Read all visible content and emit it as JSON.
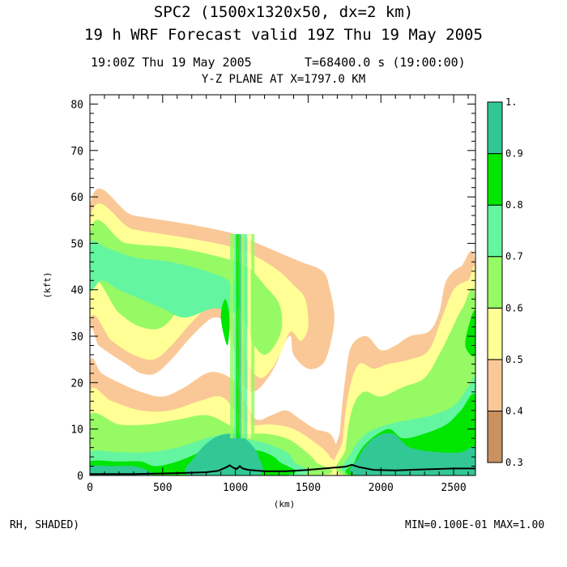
{
  "header": {
    "title_line1": "SPC2 (1500x1320x50, dx=2 km)",
    "title_line2": "19 h WRF Forecast valid 19Z Thu 19 May 2005",
    "time_text": "19:00Z Thu 19 May 2005",
    "seconds_text": "T=68400.0 s (19:00:00)",
    "plane_text": "Y-Z PLANE AT X=1797.0 KM"
  },
  "footer": {
    "field_text": "RH, SHADED)",
    "minmax_text": "MIN=0.100E-01 MAX=1.00"
  },
  "colors": {
    "levels": [
      "#c8915f",
      "#fac896",
      "#ffff96",
      "#96fa64",
      "#64f5a0",
      "#00e600",
      "#32c896"
    ]
  },
  "chart_data": {
    "type": "heatmap",
    "xlabel": "(km)",
    "ylabel": "(kft)",
    "xlim": [
      0,
      2650
    ],
    "ylim": [
      0,
      82
    ],
    "x_ticks": [
      0,
      500,
      1000,
      1500,
      2000,
      2500
    ],
    "y_ticks": [
      0,
      10,
      20,
      30,
      40,
      50,
      60,
      70,
      80
    ],
    "colorbar": {
      "labels": [
        "0.3",
        "0.4",
        "0.5",
        "0.6",
        "0.7",
        "0.8",
        "0.9",
        "1."
      ],
      "levels": [
        0.3,
        0.4,
        0.5,
        0.6,
        0.7,
        0.8,
        0.9,
        1.0
      ]
    },
    "fields": [
      {
        "level": 0.4,
        "points": [
          [
            0,
            0
          ],
          [
            0,
            58
          ],
          [
            300,
            56
          ],
          [
            700,
            54
          ],
          [
            1000,
            52
          ],
          [
            1150,
            50
          ],
          [
            1300,
            48
          ],
          [
            1450,
            46
          ],
          [
            1600,
            44
          ],
          [
            1650,
            40
          ],
          [
            1680,
            34
          ],
          [
            1650,
            28
          ],
          [
            1600,
            24
          ],
          [
            1500,
            23
          ],
          [
            1400,
            26
          ],
          [
            1380,
            30
          ],
          [
            1330,
            28
          ],
          [
            1280,
            24
          ],
          [
            1200,
            20
          ],
          [
            1120,
            18
          ],
          [
            1050,
            20
          ],
          [
            1000,
            26
          ],
          [
            950,
            32
          ],
          [
            850,
            34
          ],
          [
            700,
            30
          ],
          [
            560,
            25
          ],
          [
            450,
            22
          ],
          [
            350,
            22
          ],
          [
            250,
            24
          ],
          [
            150,
            26
          ],
          [
            60,
            28
          ],
          [
            0,
            30
          ]
        ]
      },
      {
        "level": 0.4,
        "points": [
          [
            0,
            24
          ],
          [
            80,
            22
          ],
          [
            200,
            20
          ],
          [
            350,
            18
          ],
          [
            500,
            17
          ],
          [
            650,
            19
          ],
          [
            800,
            22
          ],
          [
            900,
            22
          ],
          [
            1000,
            20
          ],
          [
            1080,
            15
          ],
          [
            1150,
            12
          ],
          [
            1250,
            13
          ],
          [
            1350,
            14
          ],
          [
            1450,
            12
          ],
          [
            1550,
            10
          ],
          [
            1650,
            9
          ],
          [
            1700,
            6
          ],
          [
            1750,
            3
          ],
          [
            1750,
            0
          ],
          [
            0,
            0
          ]
        ]
      },
      {
        "level": 0.4,
        "points": [
          [
            1720,
            0
          ],
          [
            1720,
            10
          ],
          [
            1760,
            22
          ],
          [
            1800,
            28
          ],
          [
            1900,
            30
          ],
          [
            2000,
            27
          ],
          [
            2100,
            28
          ],
          [
            2200,
            30
          ],
          [
            2330,
            31
          ],
          [
            2400,
            35
          ],
          [
            2450,
            42
          ],
          [
            2550,
            45
          ],
          [
            2650,
            45
          ],
          [
            2650,
            0
          ]
        ]
      },
      {
        "level": 0.5,
        "points": [
          [
            0,
            0
          ],
          [
            0,
            55
          ],
          [
            300,
            53
          ],
          [
            700,
            51
          ],
          [
            1000,
            49
          ],
          [
            1150,
            47
          ],
          [
            1300,
            44
          ],
          [
            1400,
            41
          ],
          [
            1480,
            38
          ],
          [
            1500,
            32
          ],
          [
            1450,
            29
          ],
          [
            1380,
            31
          ],
          [
            1320,
            27
          ],
          [
            1250,
            23
          ],
          [
            1170,
            21
          ],
          [
            1090,
            24
          ],
          [
            1040,
            30
          ],
          [
            960,
            35
          ],
          [
            850,
            37
          ],
          [
            700,
            33
          ],
          [
            560,
            28
          ],
          [
            440,
            25
          ],
          [
            300,
            26
          ],
          [
            150,
            29
          ],
          [
            0,
            33
          ]
        ]
      },
      {
        "level": 0.5,
        "points": [
          [
            0,
            0
          ],
          [
            0,
            18
          ],
          [
            150,
            16
          ],
          [
            350,
            14
          ],
          [
            550,
            14
          ],
          [
            750,
            16
          ],
          [
            900,
            17
          ],
          [
            1000,
            14
          ],
          [
            1100,
            11
          ],
          [
            1250,
            11
          ],
          [
            1400,
            10
          ],
          [
            1550,
            7
          ],
          [
            1650,
            4
          ],
          [
            1650,
            0
          ]
        ]
      },
      {
        "level": 0.5,
        "points": [
          [
            1740,
            0
          ],
          [
            1740,
            8
          ],
          [
            1780,
            18
          ],
          [
            1850,
            24
          ],
          [
            1950,
            23
          ],
          [
            2050,
            24
          ],
          [
            2200,
            25
          ],
          [
            2330,
            27
          ],
          [
            2420,
            34
          ],
          [
            2500,
            40
          ],
          [
            2600,
            42
          ],
          [
            2650,
            42
          ],
          [
            2650,
            0
          ]
        ]
      },
      {
        "level": 0.6,
        "points": [
          [
            0,
            4
          ],
          [
            0,
            52
          ],
          [
            250,
            50
          ],
          [
            600,
            49
          ],
          [
            900,
            47
          ],
          [
            1080,
            45
          ],
          [
            1200,
            41
          ],
          [
            1300,
            37
          ],
          [
            1320,
            32
          ],
          [
            1270,
            28
          ],
          [
            1200,
            26
          ],
          [
            1130,
            28
          ],
          [
            1080,
            32
          ],
          [
            980,
            38
          ],
          [
            850,
            40
          ],
          [
            650,
            37
          ],
          [
            500,
            32
          ],
          [
            350,
            32
          ],
          [
            200,
            35
          ],
          [
            0,
            41
          ]
        ]
      },
      {
        "level": 0.6,
        "points": [
          [
            0,
            0
          ],
          [
            0,
            13
          ],
          [
            200,
            11
          ],
          [
            400,
            11
          ],
          [
            600,
            12
          ],
          [
            800,
            13
          ],
          [
            950,
            11
          ],
          [
            1050,
            9
          ],
          [
            1200,
            9
          ],
          [
            1350,
            8
          ],
          [
            1450,
            6
          ],
          [
            1550,
            3
          ],
          [
            1550,
            0
          ]
        ]
      },
      {
        "level": 0.6,
        "points": [
          [
            1760,
            0
          ],
          [
            1760,
            6
          ],
          [
            1800,
            14
          ],
          [
            1880,
            18
          ],
          [
            2000,
            17
          ],
          [
            2150,
            19
          ],
          [
            2300,
            21
          ],
          [
            2400,
            26
          ],
          [
            2480,
            31
          ],
          [
            2560,
            36
          ],
          [
            2650,
            38
          ],
          [
            2650,
            0
          ]
        ]
      },
      {
        "level": 0.7,
        "points": [
          [
            0,
            40
          ],
          [
            0,
            50
          ],
          [
            120,
            49
          ],
          [
            300,
            47
          ],
          [
            550,
            46
          ],
          [
            800,
            44
          ],
          [
            950,
            42
          ],
          [
            1050,
            38
          ],
          [
            980,
            35
          ],
          [
            850,
            36
          ],
          [
            650,
            34
          ],
          [
            500,
            36
          ],
          [
            350,
            38
          ],
          [
            200,
            40
          ],
          [
            80,
            42
          ]
        ]
      },
      {
        "level": 0.7,
        "points": [
          [
            0,
            0
          ],
          [
            0,
            5
          ],
          [
            200,
            5
          ],
          [
            400,
            5
          ],
          [
            600,
            6
          ],
          [
            800,
            8
          ],
          [
            950,
            9
          ],
          [
            1050,
            8
          ],
          [
            1200,
            7
          ],
          [
            1350,
            5
          ],
          [
            1400,
            3
          ],
          [
            1400,
            0
          ]
        ]
      },
      {
        "level": 0.7,
        "points": [
          [
            1800,
            0
          ],
          [
            1800,
            5
          ],
          [
            1900,
            9
          ],
          [
            2050,
            11
          ],
          [
            2200,
            12
          ],
          [
            2350,
            13
          ],
          [
            2500,
            15
          ],
          [
            2600,
            19
          ],
          [
            2650,
            20
          ],
          [
            2650,
            0
          ]
        ]
      },
      {
        "level": 0.8,
        "points": [
          [
            0,
            0
          ],
          [
            0,
            3
          ],
          [
            200,
            3
          ],
          [
            350,
            3
          ],
          [
            450,
            2
          ],
          [
            600,
            3
          ],
          [
            750,
            5
          ],
          [
            900,
            8
          ],
          [
            1050,
            6
          ],
          [
            1200,
            5
          ],
          [
            1300,
            3
          ],
          [
            1320,
            0
          ]
        ]
      },
      {
        "level": 0.8,
        "points": [
          [
            1820,
            0
          ],
          [
            1820,
            3
          ],
          [
            1900,
            7
          ],
          [
            2050,
            10
          ],
          [
            2150,
            8
          ],
          [
            2300,
            9
          ],
          [
            2450,
            11
          ],
          [
            2550,
            14
          ],
          [
            2650,
            17
          ],
          [
            2650,
            0
          ]
        ]
      },
      {
        "level": 0.8,
        "points": [
          [
            900,
            34
          ],
          [
            930,
            38
          ],
          [
            960,
            34
          ],
          [
            945,
            28
          ]
        ]
      },
      {
        "level": 0.8,
        "points": [
          [
            2580,
            28
          ],
          [
            2620,
            34
          ],
          [
            2650,
            35
          ],
          [
            2650,
            26
          ]
        ]
      },
      {
        "level": 0.9,
        "points": [
          [
            0,
            0
          ],
          [
            0,
            2
          ],
          [
            150,
            2
          ],
          [
            300,
            2
          ],
          [
            400,
            1
          ],
          [
            400,
            0
          ]
        ]
      },
      {
        "level": 0.9,
        "points": [
          [
            680,
            0
          ],
          [
            720,
            4
          ],
          [
            850,
            8
          ],
          [
            1000,
            9
          ],
          [
            1100,
            7
          ],
          [
            1160,
            4
          ],
          [
            1150,
            0
          ]
        ]
      },
      {
        "level": 0.9,
        "points": [
          [
            1850,
            0
          ],
          [
            1850,
            4
          ],
          [
            1950,
            8
          ],
          [
            2080,
            9
          ],
          [
            2200,
            6
          ],
          [
            2400,
            5
          ],
          [
            2550,
            5
          ],
          [
            2650,
            6
          ],
          [
            2650,
            0
          ]
        ]
      },
      {
        "level": 1.0,
        "points": [
          [
            760,
            1
          ],
          [
            820,
            6
          ],
          [
            950,
            8
          ],
          [
            1050,
            7
          ],
          [
            1080,
            4
          ],
          [
            1000,
            1
          ]
        ]
      },
      {
        "level": 1.0,
        "points": [
          [
            1880,
            1
          ],
          [
            1920,
            5
          ],
          [
            2030,
            7
          ],
          [
            2150,
            5
          ],
          [
            2400,
            3
          ],
          [
            2550,
            4
          ],
          [
            2620,
            3
          ],
          [
            2600,
            1
          ]
        ]
      }
    ],
    "updraft": {
      "level": 0.7,
      "x_range": [
        970,
        1140
      ],
      "y_range": [
        8,
        52
      ],
      "columns": [
        [
          975,
          0.6
        ],
        [
          1000,
          0.7
        ],
        [
          1015,
          0.8
        ],
        [
          1035,
          0.9
        ],
        [
          1050,
          0.6
        ],
        [
          1070,
          0.7
        ],
        [
          1095,
          0.5
        ],
        [
          1120,
          0.6
        ]
      ]
    },
    "terrain": [
      [
        0,
        0.3
      ],
      [
        300,
        0.3
      ],
      [
        600,
        0.5
      ],
      [
        800,
        0.7
      ],
      [
        880,
        1.0
      ],
      [
        940,
        1.8
      ],
      [
        960,
        2.2
      ],
      [
        990,
        1.6
      ],
      [
        1010,
        1.4
      ],
      [
        1030,
        2.0
      ],
      [
        1050,
        1.5
      ],
      [
        1090,
        1.2
      ],
      [
        1200,
        0.9
      ],
      [
        1350,
        0.9
      ],
      [
        1500,
        1.2
      ],
      [
        1650,
        1.6
      ],
      [
        1760,
        1.9
      ],
      [
        1800,
        2.3
      ],
      [
        1850,
        1.8
      ],
      [
        1950,
        1.2
      ],
      [
        2100,
        1.1
      ],
      [
        2300,
        1.3
      ],
      [
        2500,
        1.5
      ],
      [
        2650,
        1.5
      ]
    ]
  }
}
